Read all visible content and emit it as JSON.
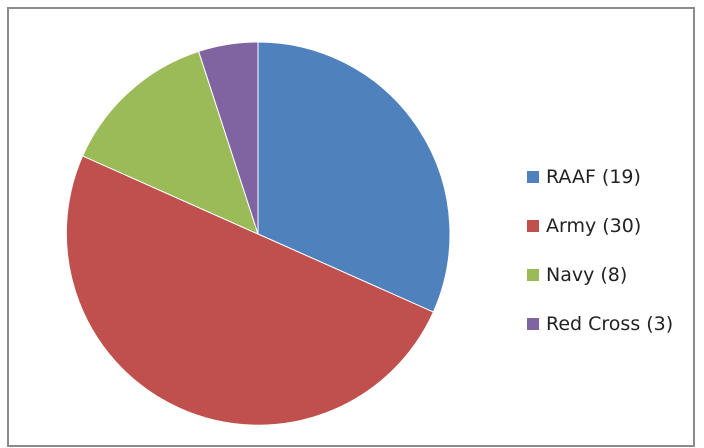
{
  "chart_data": {
    "type": "pie",
    "title": "",
    "start_angle": "12 o'clock",
    "direction": "clockwise",
    "legend_position": "right",
    "slices": [
      {
        "label": "RAAF (19)",
        "value": 19,
        "color": "#4F81BD"
      },
      {
        "label": "Army (30)",
        "value": 30,
        "color": "#C0504D"
      },
      {
        "label": "Navy (8)",
        "value": 8,
        "color": "#9BBB59"
      },
      {
        "label": "Red Cross (3)",
        "value": 3,
        "color": "#8064A2"
      }
    ]
  }
}
